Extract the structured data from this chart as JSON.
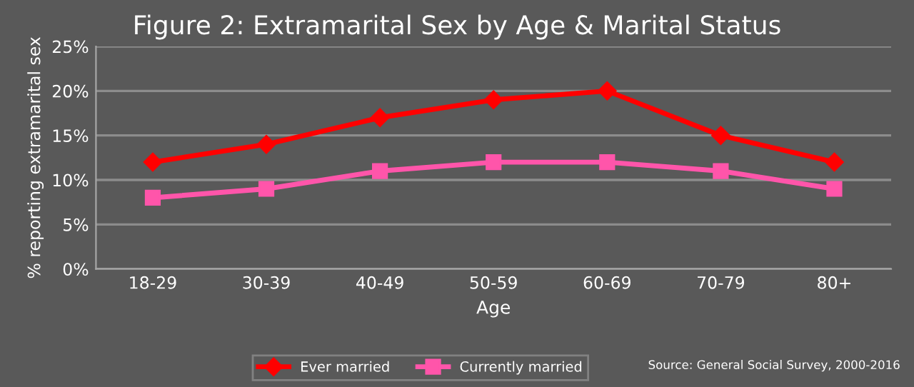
{
  "chart_data": {
    "type": "line",
    "title": "Figure 2: Extramarital Sex by Age & Marital Status",
    "xlabel": "Age",
    "ylabel": "% reporting extramarital sex",
    "categories": [
      "18-29",
      "30-39",
      "40-49",
      "50-59",
      "60-69",
      "70-79",
      "80+"
    ],
    "series": [
      {
        "name": "Ever married",
        "color": "#ff0000",
        "marker": "diamond",
        "values": [
          12,
          14,
          17,
          19,
          20,
          15,
          12
        ]
      },
      {
        "name": "Currently married",
        "color": "#ff55aa",
        "marker": "square",
        "values": [
          8,
          9,
          11,
          12,
          12,
          11,
          9
        ]
      }
    ],
    "ylim": [
      0,
      25
    ],
    "yticks": [
      {
        "value": 0,
        "label": "0%"
      },
      {
        "value": 5,
        "label": "5%"
      },
      {
        "value": 10,
        "label": "10%"
      },
      {
        "value": 15,
        "label": "15%"
      },
      {
        "value": 20,
        "label": "20%"
      },
      {
        "value": 25,
        "label": "25%"
      }
    ],
    "grid": "y",
    "legend": "bottom",
    "line_style": "solid",
    "annotations": [
      "Source: General Social Survey, 2000-2016"
    ]
  }
}
